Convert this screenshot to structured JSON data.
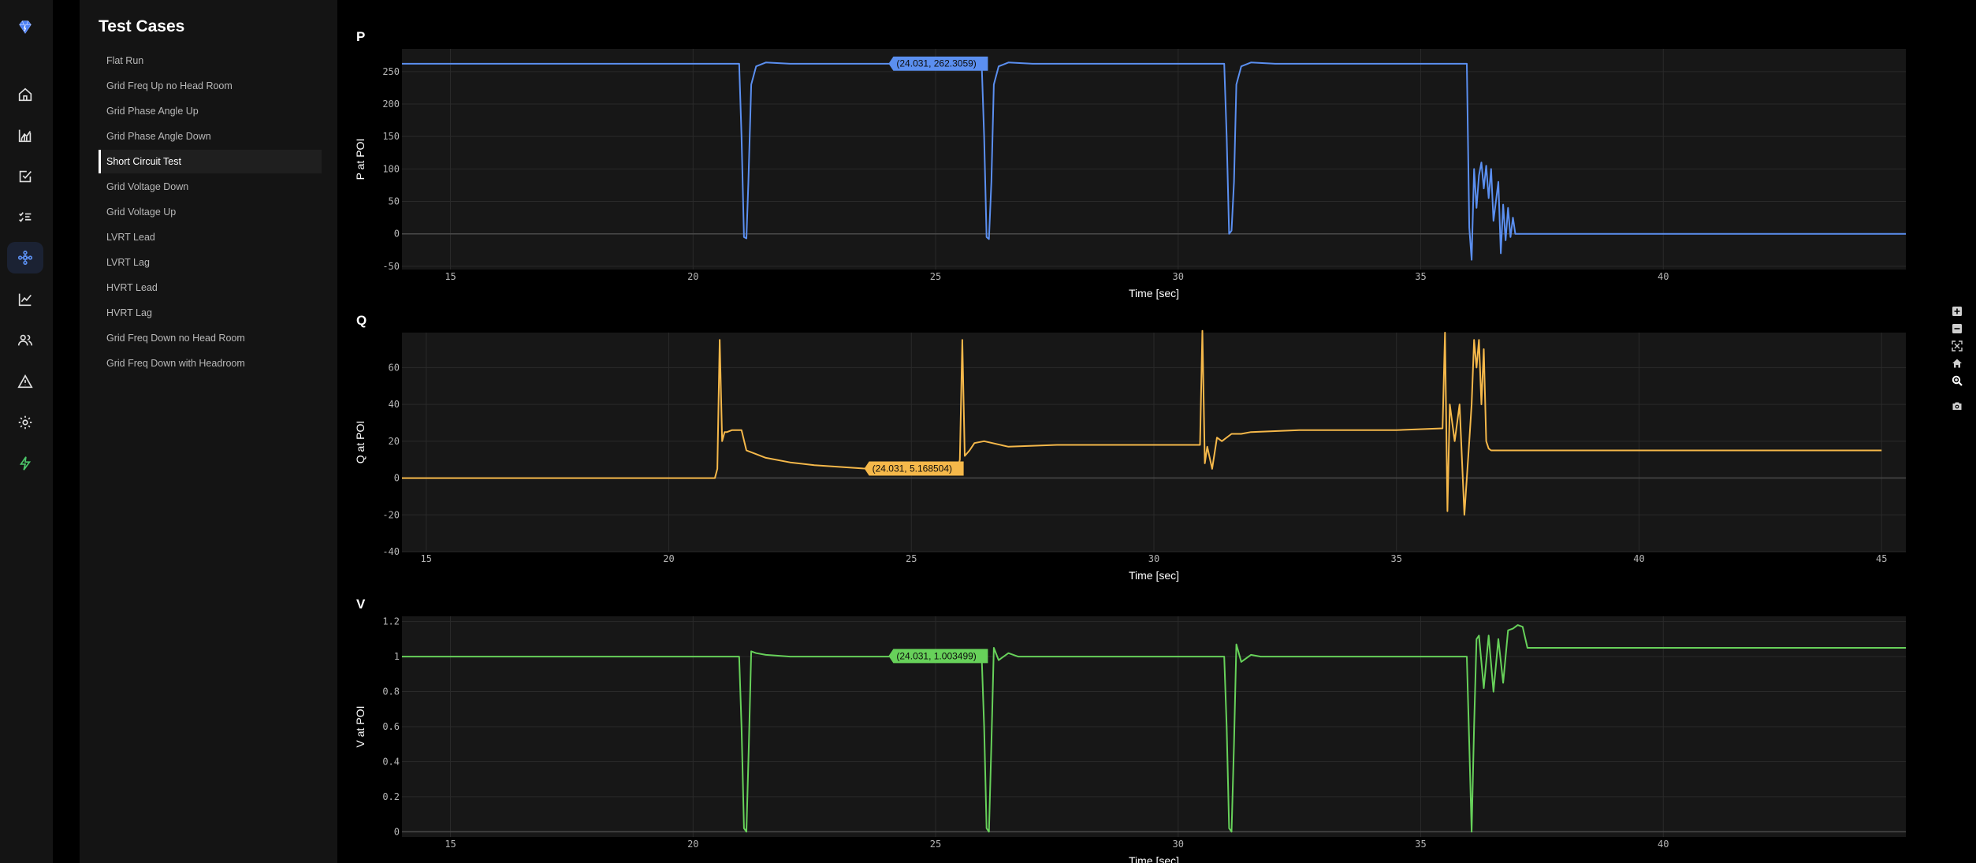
{
  "app": {
    "rail_icons": [
      "logo-icon",
      "home-icon",
      "analytics-icon",
      "task-check-icon",
      "checklist-icon",
      "network-icon",
      "trend-icon",
      "users-icon",
      "alert-icon",
      "gear-icon",
      "bolt-icon"
    ],
    "active_rail_icon": "network-icon"
  },
  "sidebar": {
    "title": "Test Cases",
    "active_index": 4,
    "items": [
      {
        "label": "Flat Run"
      },
      {
        "label": "Grid Freq Up no Head Room"
      },
      {
        "label": "Grid Phase Angle Up"
      },
      {
        "label": "Grid Phase Angle Down"
      },
      {
        "label": "Short Circuit Test"
      },
      {
        "label": "Grid Voltage Down"
      },
      {
        "label": "Grid Voltage Up"
      },
      {
        "label": "LVRT Lead"
      },
      {
        "label": "LVRT Lag"
      },
      {
        "label": "HVRT Lead"
      },
      {
        "label": "HVRT Lag"
      },
      {
        "label": "Grid Freq Down no Head Room"
      },
      {
        "label": "Grid Freq Down with Headroom"
      }
    ]
  },
  "modebar": {
    "icons": [
      "zoom-in-icon",
      "zoom-out-icon",
      "autoscale-icon",
      "reset-axes-icon",
      "zoom-icon",
      "camera-icon"
    ]
  },
  "colors": {
    "P": "#5b8ff0",
    "Q": "#f5b84a",
    "V": "#67d15a",
    "accent": "#4a7ef5"
  },
  "chart_data": [
    {
      "type": "line",
      "title": "P",
      "xlabel": "Time [sec]",
      "ylabel": "P at POI",
      "xlim": [
        14,
        45
      ],
      "ylim": [
        -55,
        285
      ],
      "xticks": [
        15,
        20,
        25,
        30,
        35,
        40
      ],
      "yticks": [
        -50,
        0,
        50,
        100,
        150,
        200,
        250
      ],
      "tooltip": "(24.031, 262.3059)",
      "hover_point": [
        24.031,
        262.3059
      ],
      "x": [
        14,
        20.95,
        21.0,
        21.05,
        21.1,
        21.14,
        21.2,
        21.3,
        21.5,
        22,
        24,
        25.95,
        26.0,
        26.05,
        26.1,
        26.15,
        26.2,
        26.3,
        26.5,
        27,
        30,
        30.95,
        31.0,
        31.05,
        31.1,
        31.15,
        31.2,
        31.3,
        31.5,
        32,
        35.95,
        36.0,
        36.05,
        36.1,
        36.15,
        36.2,
        36.25,
        36.3,
        36.35,
        36.4,
        36.45,
        36.5,
        36.55,
        36.6,
        36.65,
        36.7,
        36.75,
        36.8,
        36.85,
        36.9,
        36.95,
        37.0,
        38,
        45
      ],
      "y": [
        262,
        262,
        150,
        -5,
        -7,
        80,
        230,
        258,
        264,
        262,
        262,
        262,
        150,
        -5,
        -8,
        80,
        230,
        258,
        264,
        262,
        262,
        262,
        150,
        0,
        5,
        80,
        230,
        258,
        264,
        262,
        262,
        10,
        -40,
        100,
        40,
        90,
        110,
        70,
        105,
        55,
        100,
        20,
        50,
        80,
        -30,
        45,
        -10,
        40,
        -5,
        25,
        0,
        0,
        0,
        0
      ]
    },
    {
      "type": "line",
      "title": "Q",
      "xlabel": "Time [sec]",
      "ylabel": "Q at POI",
      "xlim": [
        14.5,
        45.5
      ],
      "ylim": [
        -40,
        79
      ],
      "xticks": [
        15,
        20,
        25,
        30,
        35,
        40,
        45
      ],
      "yticks": [
        -40,
        -20,
        0,
        20,
        40,
        60
      ],
      "tooltip": "(24.031, 5.168504)",
      "hover_point": [
        24.031,
        5.168504
      ],
      "x": [
        14.5,
        20.95,
        21.0,
        21.05,
        21.1,
        21.15,
        21.2,
        21.3,
        21.4,
        21.5,
        21.6,
        21.7,
        22.0,
        22.5,
        23.0,
        24.0,
        25.0,
        25.95,
        26.0,
        26.05,
        26.1,
        26.2,
        26.3,
        26.5,
        27.0,
        28.0,
        30.95,
        31.0,
        31.05,
        31.1,
        31.2,
        31.3,
        31.4,
        31.6,
        31.8,
        32.0,
        33.0,
        34.0,
        35.0,
        35.95,
        36.0,
        36.05,
        36.1,
        36.2,
        36.3,
        36.4,
        36.5,
        36.55,
        36.6,
        36.65,
        36.7,
        36.75,
        36.8,
        36.85,
        36.9,
        36.95,
        37.0,
        38.0,
        45.0
      ],
      "y": [
        0,
        0,
        5,
        75,
        20,
        25,
        25,
        26,
        26,
        26,
        15,
        14,
        11,
        8.5,
        7,
        5.2,
        4.5,
        4,
        10,
        75,
        12,
        15,
        19,
        20,
        17,
        18,
        18,
        80,
        8,
        17,
        5,
        22,
        20,
        24,
        24,
        25,
        26,
        26,
        26,
        27,
        79,
        -18,
        40,
        20,
        40,
        -20,
        20,
        40,
        75,
        60,
        75,
        40,
        70,
        20,
        16,
        15,
        15,
        15,
        15
      ]
    },
    {
      "type": "line",
      "title": "V",
      "xlabel": "Time [sec]",
      "ylabel": "V at POI",
      "xlim": [
        14,
        45
      ],
      "ylim": [
        -0.03,
        1.23
      ],
      "xticks": [
        15,
        20,
        25,
        30,
        35,
        40
      ],
      "yticks": [
        0,
        0.2,
        0.4,
        0.6,
        0.8,
        1,
        1.2
      ],
      "tooltip": "(24.031, 1.003499)",
      "hover_point": [
        24.031,
        1.003499
      ],
      "x": [
        14,
        20.95,
        21.0,
        21.05,
        21.1,
        21.15,
        21.2,
        21.3,
        21.5,
        22,
        25.95,
        26.0,
        26.05,
        26.1,
        26.15,
        26.2,
        26.3,
        26.5,
        26.7,
        30.95,
        31.0,
        31.05,
        31.1,
        31.15,
        31.2,
        31.3,
        31.5,
        31.7,
        35.95,
        36.0,
        36.05,
        36.1,
        36.15,
        36.2,
        36.3,
        36.4,
        36.5,
        36.6,
        36.7,
        36.8,
        36.9,
        37.0,
        37.1,
        37.2,
        38,
        45
      ],
      "y": [
        1.0,
        1.0,
        0.6,
        0.02,
        0.0,
        0.5,
        1.03,
        1.02,
        1.01,
        1.0,
        1.0,
        0.6,
        0.02,
        0.0,
        0.5,
        1.05,
        0.98,
        1.02,
        1.0,
        1.0,
        0.6,
        0.02,
        0.0,
        0.5,
        1.07,
        0.97,
        1.01,
        1.0,
        1.0,
        0.5,
        0.0,
        0.6,
        1.1,
        1.12,
        0.82,
        1.12,
        0.8,
        1.1,
        0.85,
        1.15,
        1.16,
        1.18,
        1.17,
        1.05,
        1.05,
        1.05
      ]
    }
  ]
}
